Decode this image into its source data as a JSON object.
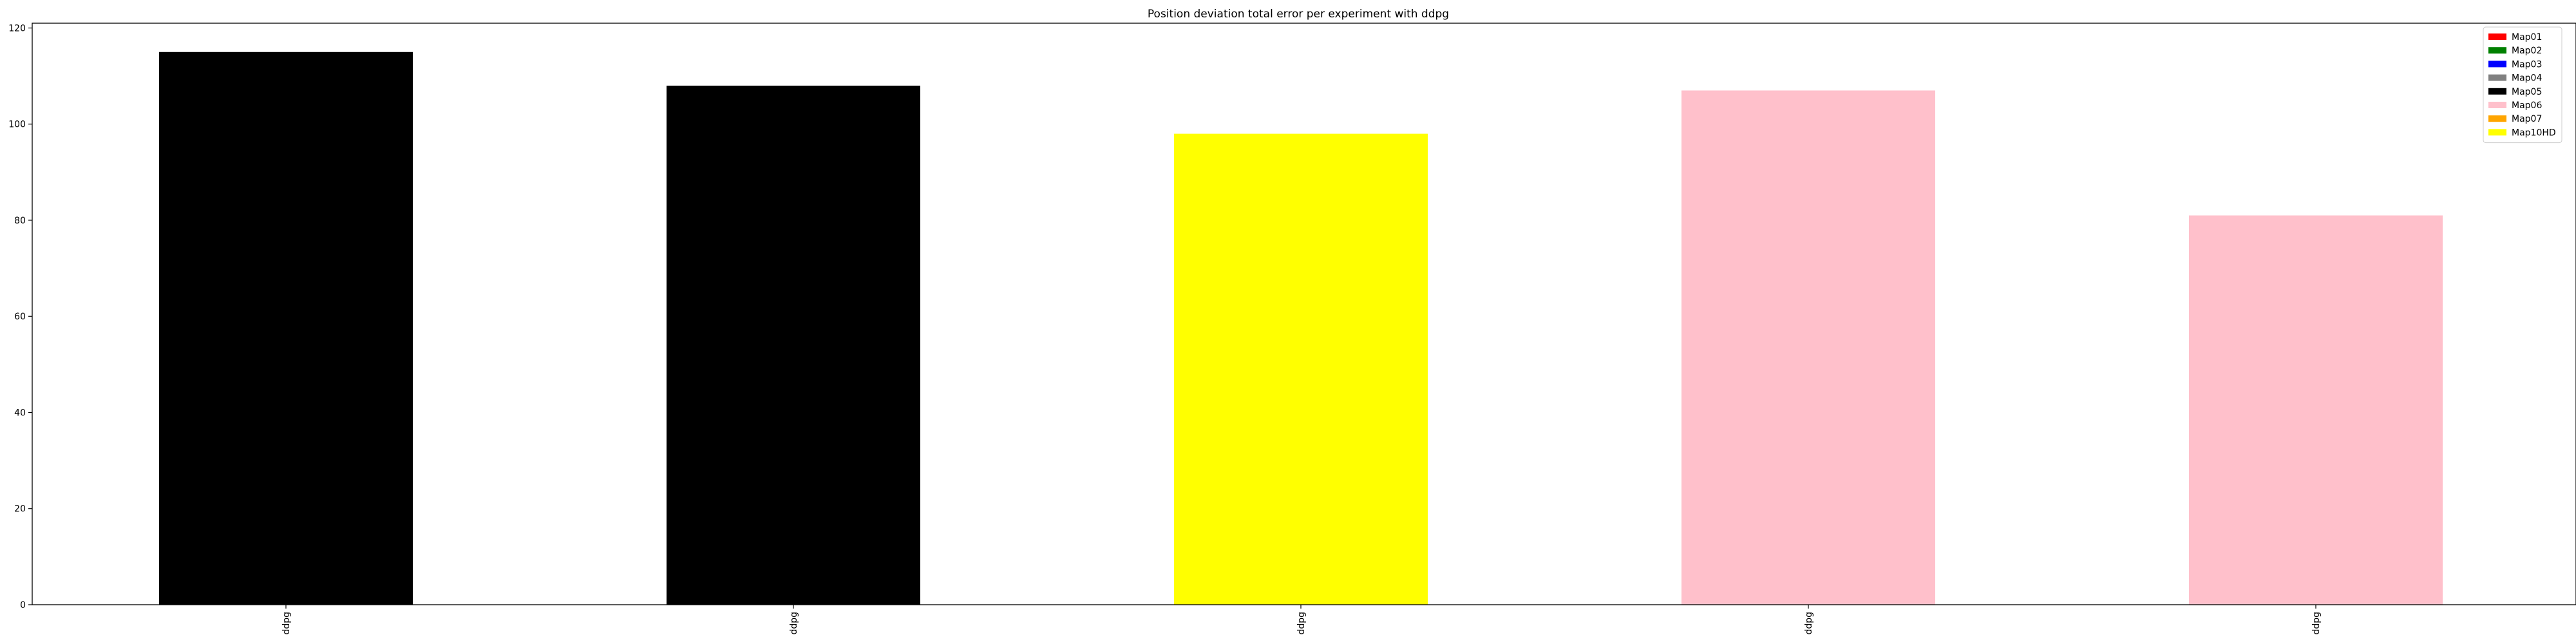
{
  "chart_data": {
    "type": "bar",
    "title": "Position deviation total error per experiment with ddpg",
    "xlabel": "",
    "ylabel": "",
    "categories": [
      "ddpg",
      "ddpg",
      "ddpg",
      "ddpg",
      "ddpg"
    ],
    "values": [
      115,
      108,
      98,
      107,
      81
    ],
    "bar_maps": [
      "Map05",
      "Map05",
      "Map10HD",
      "Map06",
      "Map06"
    ],
    "ylim": [
      0,
      121
    ],
    "yticks": [
      0,
      20,
      40,
      60,
      80,
      100,
      120
    ],
    "grid": false,
    "legend_position": "top-right",
    "legend": [
      {
        "label": "Map01",
        "color": "#ff0000"
      },
      {
        "label": "Map02",
        "color": "#008000"
      },
      {
        "label": "Map03",
        "color": "#0000ff"
      },
      {
        "label": "Map04",
        "color": "#808080"
      },
      {
        "label": "Map05",
        "color": "#000000"
      },
      {
        "label": "Map06",
        "color": "#ffc0cb"
      },
      {
        "label": "Map07",
        "color": "#ffa500"
      },
      {
        "label": "Map10HD",
        "color": "#ffff00"
      }
    ]
  }
}
